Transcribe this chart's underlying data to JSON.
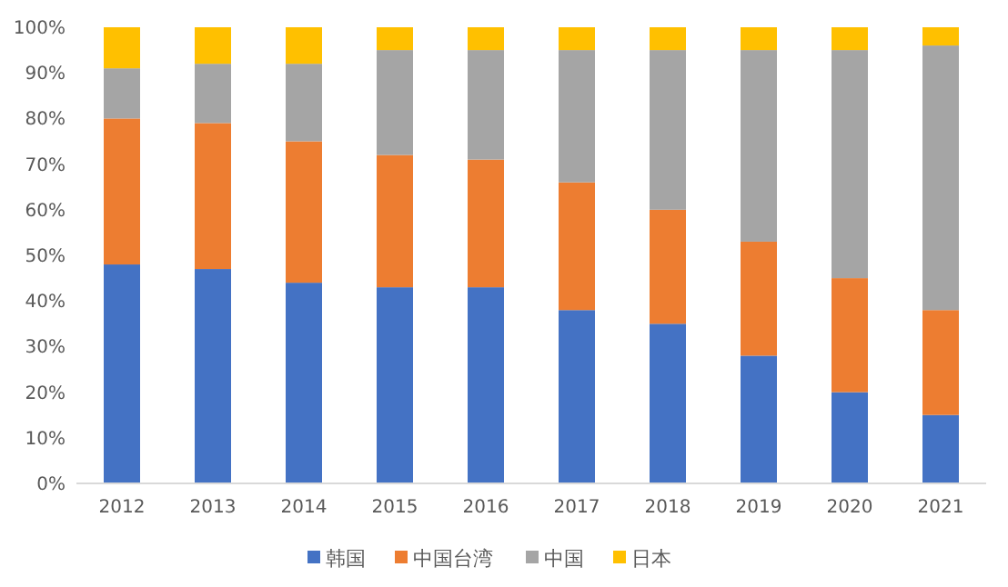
{
  "chart_data": {
    "type": "bar",
    "stacked": true,
    "categories": [
      "2012",
      "2013",
      "2014",
      "2015",
      "2016",
      "2017",
      "2018",
      "2019",
      "2020",
      "2021"
    ],
    "series": [
      {
        "name": "韩国",
        "color": "#4472c4",
        "values": [
          48,
          47,
          44,
          43,
          43,
          38,
          35,
          28,
          20,
          15
        ]
      },
      {
        "name": "中国台湾",
        "color": "#ed7d31",
        "values": [
          32,
          32,
          31,
          29,
          28,
          28,
          25,
          25,
          25,
          23
        ]
      },
      {
        "name": "中国",
        "color": "#a5a5a5",
        "values": [
          11,
          13,
          17,
          23,
          24,
          29,
          35,
          42,
          50,
          58
        ]
      },
      {
        "name": "日本",
        "color": "#ffc000",
        "values": [
          9,
          8,
          8,
          5,
          5,
          5,
          5,
          5,
          5,
          4
        ]
      }
    ],
    "ylim": [
      0,
      100
    ],
    "yticks": [
      {
        "value": 0,
        "label": "0%"
      },
      {
        "value": 10,
        "label": "10%"
      },
      {
        "value": 20,
        "label": "20%"
      },
      {
        "value": 30,
        "label": "30%"
      },
      {
        "value": 40,
        "label": "40%"
      },
      {
        "value": 50,
        "label": "50%"
      },
      {
        "value": 60,
        "label": "60%"
      },
      {
        "value": 70,
        "label": "70%"
      },
      {
        "value": 80,
        "label": "80%"
      },
      {
        "value": 90,
        "label": "90%"
      },
      {
        "value": 100,
        "label": "100%"
      }
    ],
    "legend": "bottom"
  }
}
